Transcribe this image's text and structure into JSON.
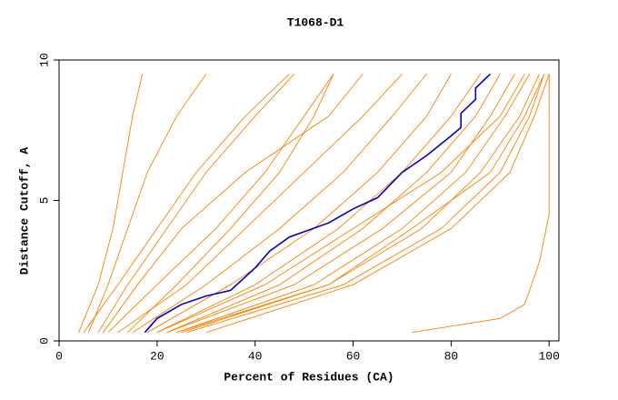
{
  "chart_data": {
    "type": "line",
    "title": "T1068-D1",
    "x_label": "Percent of Residues (CA)",
    "y_label": "Distance Cutoff, A",
    "xlim": [
      0,
      102
    ],
    "ylim": [
      0,
      10
    ],
    "xticks": [
      0,
      20,
      40,
      60,
      80,
      100
    ],
    "yticks": [
      0,
      5,
      10
    ],
    "series": [
      {
        "color": "#ff8000",
        "x": [
          4,
          8,
          11,
          13,
          15,
          17
        ],
        "values": [
          0.3,
          2,
          4,
          6,
          8,
          9.5
        ]
      },
      {
        "color": "#ff8000",
        "x": [
          6,
          10,
          14,
          18,
          24,
          30
        ],
        "values": [
          0.3,
          2,
          4,
          6,
          8,
          9.5
        ]
      },
      {
        "color": "#ff8000",
        "x": [
          8,
          14,
          22,
          30,
          40,
          48
        ],
        "values": [
          0.3,
          2,
          4,
          6,
          8,
          9.5
        ]
      },
      {
        "color": "#ff8000",
        "x": [
          5,
          12,
          20,
          28,
          38,
          47
        ],
        "values": [
          0.3,
          2,
          4,
          6,
          8,
          9.5
        ]
      },
      {
        "color": "#ff8000",
        "x": [
          10,
          20,
          32,
          42,
          50,
          56
        ],
        "values": [
          0.3,
          2,
          4,
          6,
          8,
          9.5
        ]
      },
      {
        "color": "#ff8000",
        "x": [
          12,
          26,
          38,
          50,
          62,
          70
        ],
        "values": [
          0.3,
          2,
          4,
          6,
          8,
          9.5
        ]
      },
      {
        "color": "#ff8000",
        "x": [
          15,
          30,
          45,
          58,
          68,
          75
        ],
        "values": [
          0.3,
          2,
          4,
          6,
          8,
          9.5
        ]
      },
      {
        "color": "#ff8000",
        "x": [
          18,
          35,
          52,
          65,
          75,
          80
        ],
        "values": [
          0.3,
          2,
          4,
          6,
          8,
          9.5
        ]
      },
      {
        "color": "#ff8000",
        "x": [
          20,
          40,
          57,
          70,
          80,
          86
        ],
        "values": [
          0.3,
          2,
          4,
          6,
          8,
          9.5
        ]
      },
      {
        "color": "#ff8000",
        "x": [
          22,
          45,
          62,
          75,
          85,
          90
        ],
        "values": [
          0.3,
          2,
          4,
          6,
          8,
          9.5
        ]
      },
      {
        "color": "#ff8000",
        "x": [
          22,
          48,
          66,
          80,
          88,
          93
        ],
        "values": [
          0.3,
          2,
          4,
          6,
          8,
          9.5
        ]
      },
      {
        "color": "#ff8000",
        "x": [
          24,
          52,
          70,
          83,
          91,
          96
        ],
        "values": [
          0.3,
          2,
          4,
          6,
          8,
          9.5
        ]
      },
      {
        "color": "#ff8000",
        "x": [
          25,
          55,
          74,
          86,
          94,
          98
        ],
        "values": [
          0.3,
          2,
          4,
          6,
          8,
          9.5
        ]
      },
      {
        "color": "#ff8000",
        "x": [
          26,
          58,
          78,
          90,
          96,
          99
        ],
        "values": [
          0.3,
          2,
          4,
          6,
          8,
          9.5
        ]
      },
      {
        "color": "#ff8000",
        "x": [
          24,
          55,
          72,
          88,
          95,
          99
        ],
        "values": [
          0.3,
          2,
          4,
          6,
          8,
          9.5
        ]
      },
      {
        "color": "#ff8000",
        "x": [
          20,
          42,
          60,
          78,
          90,
          95
        ],
        "values": [
          0.3,
          2,
          4,
          6,
          8,
          9.5
        ]
      },
      {
        "color": "#ff8000",
        "x": [
          9,
          16,
          25,
          38,
          55,
          62
        ],
        "values": [
          0.3,
          2,
          4,
          6,
          8,
          9.5
        ]
      },
      {
        "color": "#ff8000",
        "x": [
          14,
          24,
          35,
          45,
          52,
          56
        ],
        "values": [
          0.3,
          2,
          4,
          6,
          8,
          9.5
        ]
      },
      {
        "color": "#ff8000",
        "x": [
          30,
          60,
          80,
          92,
          97,
          100
        ],
        "values": [
          0.3,
          2,
          4,
          6,
          8,
          9.5
        ]
      },
      {
        "color": "#ff8000",
        "x": [
          72,
          90,
          95,
          98,
          100,
          100
        ],
        "values": [
          0.3,
          0.8,
          1.3,
          2.8,
          4.5,
          9.5
        ]
      },
      {
        "color": "#0000c0",
        "x": [
          17.5,
          20,
          25,
          30,
          35,
          40,
          43,
          47,
          55,
          60,
          65,
          70,
          75,
          80,
          82,
          82,
          85,
          85,
          88
        ],
        "values": [
          0.3,
          0.8,
          1.3,
          1.6,
          1.8,
          2.6,
          3.2,
          3.7,
          4.2,
          4.7,
          5.1,
          6.0,
          6.6,
          7.3,
          7.6,
          8.1,
          8.6,
          9.0,
          9.5
        ]
      }
    ]
  }
}
